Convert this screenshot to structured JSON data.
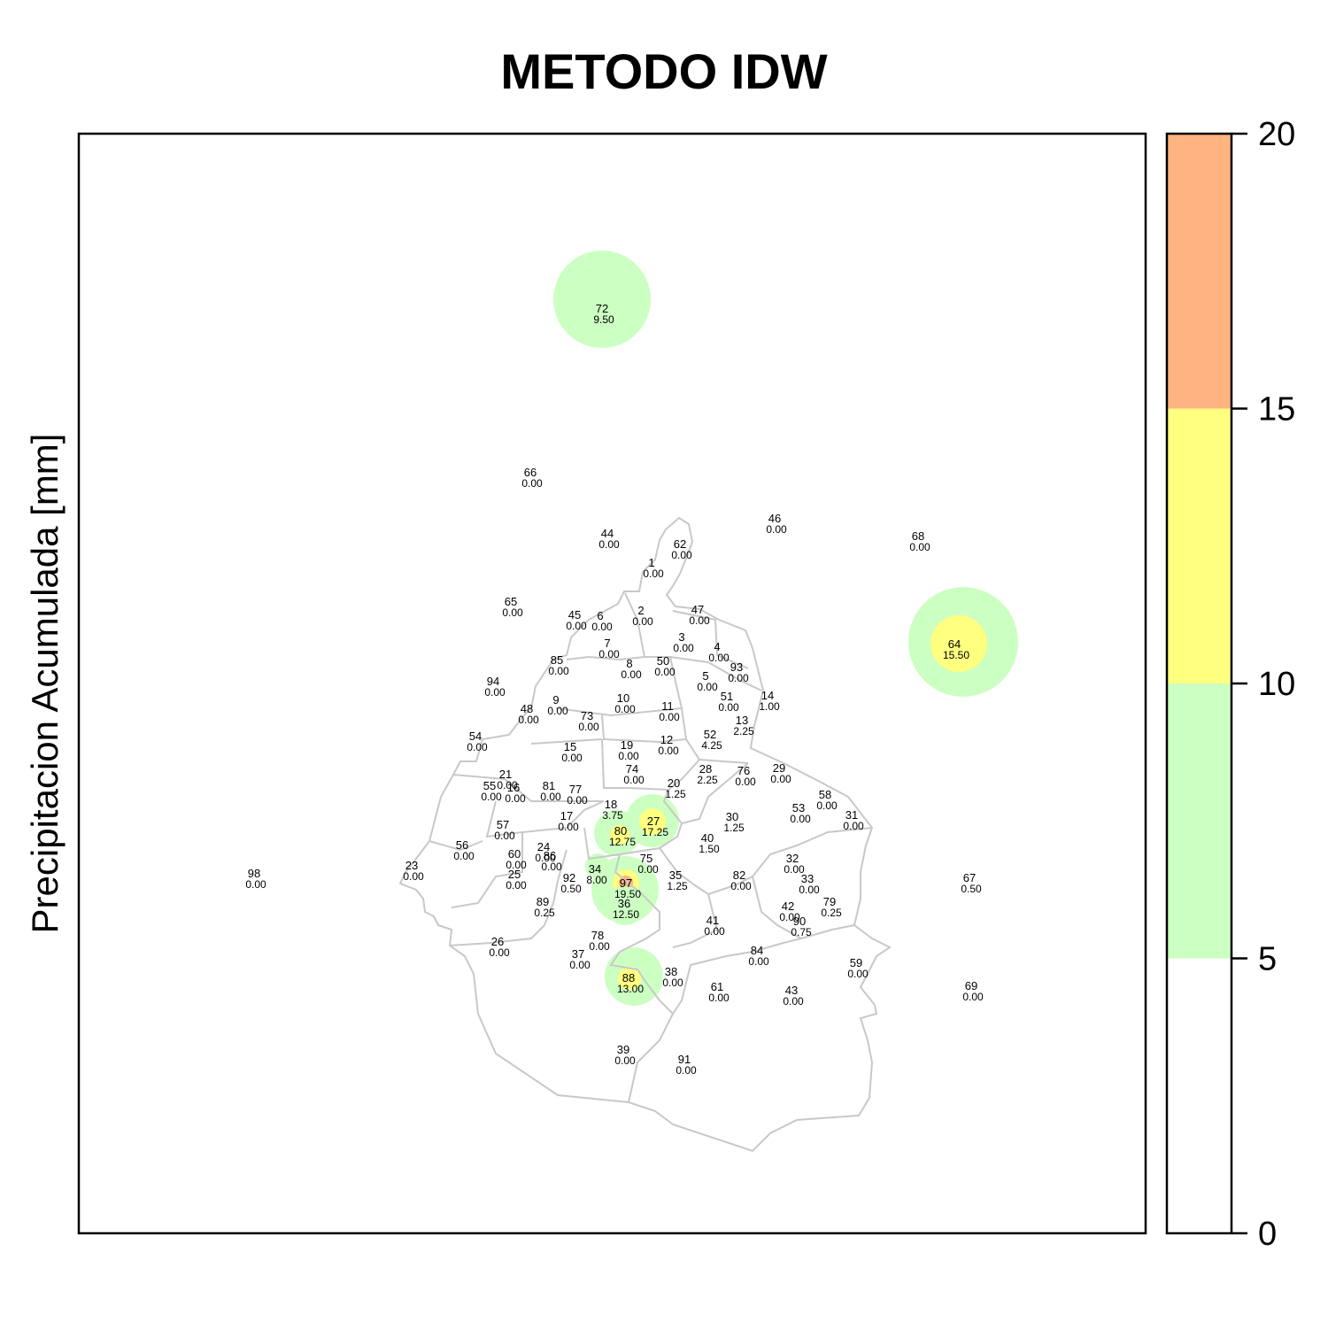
{
  "title": "METODO IDW",
  "ylabel": "Precipitacion Acumulada [mm]",
  "legend": {
    "breaks": [
      0,
      5,
      10,
      15,
      20
    ],
    "tick_labels": [
      "0",
      "5",
      "10",
      "15",
      "20"
    ],
    "colors": [
      "#ffffff",
      "#ccffc2",
      "#ffff80",
      "#ffb380"
    ]
  },
  "stations": [
    {
      "id": "72",
      "value": "9.50"
    },
    {
      "id": "66",
      "value": "0.00"
    },
    {
      "id": "46",
      "value": "0.00"
    },
    {
      "id": "44",
      "value": "0.00"
    },
    {
      "id": "62",
      "value": "0.00"
    },
    {
      "id": "68",
      "value": "0.00"
    },
    {
      "id": "1",
      "value": "0.00"
    },
    {
      "id": "65",
      "value": "0.00"
    },
    {
      "id": "45",
      "value": "0.00"
    },
    {
      "id": "6",
      "value": "0.00"
    },
    {
      "id": "2",
      "value": "0.00"
    },
    {
      "id": "47",
      "value": "0.00"
    },
    {
      "id": "64",
      "value": "15.50"
    },
    {
      "id": "3",
      "value": "0.00"
    },
    {
      "id": "4",
      "value": "0.00"
    },
    {
      "id": "7",
      "value": "0.00"
    },
    {
      "id": "85",
      "value": "0.00"
    },
    {
      "id": "8",
      "value": "0.00"
    },
    {
      "id": "50",
      "value": "0.00"
    },
    {
      "id": "93",
      "value": "0.00"
    },
    {
      "id": "5",
      "value": "0.00"
    },
    {
      "id": "94",
      "value": "0.00"
    },
    {
      "id": "14",
      "value": "1.00"
    },
    {
      "id": "9",
      "value": "0.00"
    },
    {
      "id": "10",
      "value": "0.00"
    },
    {
      "id": "51",
      "value": "0.00"
    },
    {
      "id": "48",
      "value": "0.00"
    },
    {
      "id": "11",
      "value": "0.00"
    },
    {
      "id": "73",
      "value": "0.00"
    },
    {
      "id": "13",
      "value": "2.25"
    },
    {
      "id": "54",
      "value": "0.00"
    },
    {
      "id": "52",
      "value": "4.25"
    },
    {
      "id": "15",
      "value": "0.00"
    },
    {
      "id": "12",
      "value": "0.00"
    },
    {
      "id": "19",
      "value": "0.00"
    },
    {
      "id": "28",
      "value": "2.25"
    },
    {
      "id": "29",
      "value": "0.00"
    },
    {
      "id": "74",
      "value": "0.00"
    },
    {
      "id": "76",
      "value": "0.00"
    },
    {
      "id": "21",
      "value": "0.00"
    },
    {
      "id": "55",
      "value": "0.00"
    },
    {
      "id": "16",
      "value": "0.00"
    },
    {
      "id": "81",
      "value": "0.00"
    },
    {
      "id": "77",
      "value": "0.00"
    },
    {
      "id": "20",
      "value": "1.25"
    },
    {
      "id": "58",
      "value": "0.00"
    },
    {
      "id": "18",
      "value": "3.75"
    },
    {
      "id": "53",
      "value": "0.00"
    },
    {
      "id": "17",
      "value": "0.00"
    },
    {
      "id": "27",
      "value": "17.25"
    },
    {
      "id": "30",
      "value": "1.25"
    },
    {
      "id": "31",
      "value": "0.00"
    },
    {
      "id": "57",
      "value": "0.00"
    },
    {
      "id": "80",
      "value": "12.75"
    },
    {
      "id": "40",
      "value": "1.50"
    },
    {
      "id": "56",
      "value": "0.00"
    },
    {
      "id": "24",
      "value": "0.00"
    },
    {
      "id": "60",
      "value": "0.00"
    },
    {
      "id": "86",
      "value": "0.00"
    },
    {
      "id": "75",
      "value": "0.00"
    },
    {
      "id": "32",
      "value": "0.00"
    },
    {
      "id": "23",
      "value": "0.00"
    },
    {
      "id": "98",
      "value": "0.00"
    },
    {
      "id": "34",
      "value": "8.00"
    },
    {
      "id": "25",
      "value": "0.00"
    },
    {
      "id": "92",
      "value": "0.50"
    },
    {
      "id": "97",
      "value": "19.50"
    },
    {
      "id": "35",
      "value": "1.25"
    },
    {
      "id": "82",
      "value": "0.00"
    },
    {
      "id": "33",
      "value": "0.00"
    },
    {
      "id": "67",
      "value": "0.50"
    },
    {
      "id": "89",
      "value": "0.25"
    },
    {
      "id": "36",
      "value": "12.50"
    },
    {
      "id": "79",
      "value": "0.25"
    },
    {
      "id": "42",
      "value": "0.00"
    },
    {
      "id": "90",
      "value": "0.75"
    },
    {
      "id": "41",
      "value": "0.00"
    },
    {
      "id": "26",
      "value": "0.00"
    },
    {
      "id": "78",
      "value": "0.00"
    },
    {
      "id": "37",
      "value": "0.00"
    },
    {
      "id": "84",
      "value": "0.00"
    },
    {
      "id": "59",
      "value": "0.00"
    },
    {
      "id": "88",
      "value": "13.00"
    },
    {
      "id": "38",
      "value": "0.00"
    },
    {
      "id": "61",
      "value": "0.00"
    },
    {
      "id": "43",
      "value": "0.00"
    },
    {
      "id": "69",
      "value": "0.00"
    },
    {
      "id": "39",
      "value": "0.00"
    },
    {
      "id": "91",
      "value": "0.00"
    }
  ]
}
